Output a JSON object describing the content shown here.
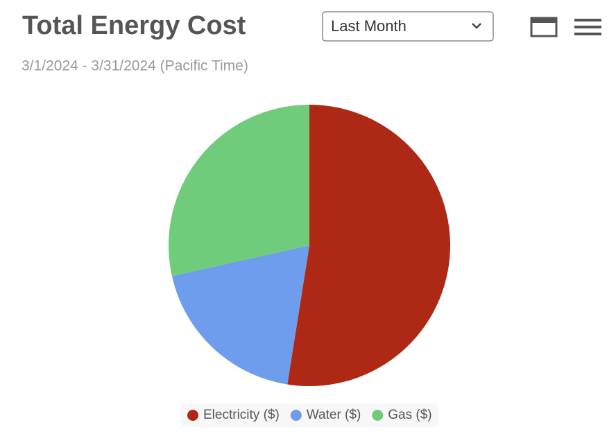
{
  "controls": {
    "period_select": "Last Month"
  },
  "chart_data": {
    "type": "pie",
    "title": "Total Energy Cost",
    "subtitle": "3/1/2024 - 3/31/2024 (Pacific Time)",
    "categories": [
      "Electricity ($)",
      "Water ($)",
      "Gas ($)"
    ],
    "values": [
      52.5,
      19,
      28.5
    ],
    "colors": [
      "#ad2915",
      "#6f9ded",
      "#6ecc7a"
    ],
    "legend": "bottom"
  }
}
